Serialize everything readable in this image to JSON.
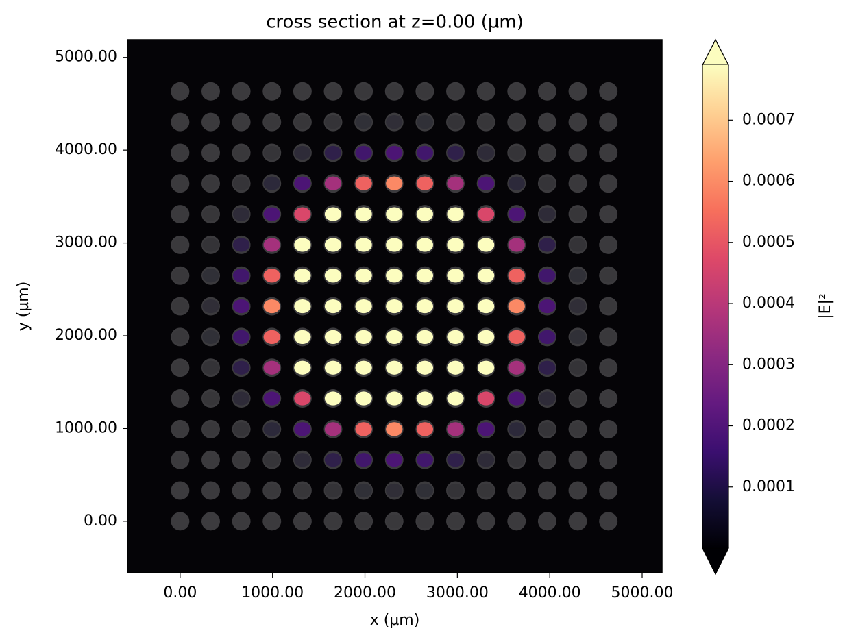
{
  "chart_data": {
    "type": "heatmap",
    "title": "cross section at z=0.00 (µm)",
    "xlabel": "x (µm)",
    "ylabel": "y (µm)",
    "colorbar_label": "|E|²",
    "colormap": "magma",
    "xlim": [
      -570,
      5215
    ],
    "ylim": [
      -555,
      5190
    ],
    "xticks": [
      {
        "value": 0,
        "label": "0.00"
      },
      {
        "value": 1000,
        "label": "1000.00"
      },
      {
        "value": 2000,
        "label": "2000.00"
      },
      {
        "value": 3000,
        "label": "3000.00"
      },
      {
        "value": 4000,
        "label": "4000.00"
      },
      {
        "value": 5000,
        "label": "5000.00"
      }
    ],
    "yticks": [
      {
        "value": 0,
        "label": "0.00"
      },
      {
        "value": 1000,
        "label": "1000.00"
      },
      {
        "value": 2000,
        "label": "2000.00"
      },
      {
        "value": 3000,
        "label": "3000.00"
      },
      {
        "value": 4000,
        "label": "4000.00"
      },
      {
        "value": 5000,
        "label": "5000.00"
      }
    ],
    "clim": [
      0,
      0.00079
    ],
    "cticks": [
      0.0001,
      0.0002,
      0.0003,
      0.0004,
      0.0005,
      0.0006,
      0.0007
    ],
    "x": [
      0,
      331,
      662,
      993,
      1324,
      1655,
      1986,
      2317,
      2648,
      2979,
      3310,
      3641,
      3972,
      4303,
      4634
    ],
    "y": [
      0,
      331,
      662,
      993,
      1324,
      1655,
      1986,
      2317,
      2648,
      2979,
      3310,
      3641,
      3972,
      4303,
      4634
    ],
    "values": [
      [
        0,
        1e-07,
        4e-07,
        1.3e-06,
        3.1e-06,
        5.8e-06,
        8.5e-06,
        9.6e-06,
        8.5e-06,
        5.8e-06,
        3.1e-06,
        1.3e-06,
        4e-07,
        1e-07,
        0
      ],
      [
        1e-07,
        5e-07,
        2.2e-06,
        6.6e-06,
        1.6e-05,
        2.96e-05,
        4.31e-05,
        4.88e-05,
        4.31e-05,
        2.96e-05,
        1.6e-05,
        6.6e-06,
        2.2e-06,
        5e-07,
        1e-07
      ],
      [
        4e-07,
        2.2e-06,
        8.5e-06,
        2.61e-05,
        6.27e-05,
        0.000117,
        0.000171,
        0.000193,
        0.000171,
        0.000117,
        6.27e-05,
        2.61e-05,
        8.5e-06,
        2.2e-06,
        4e-07
      ],
      [
        1.3e-06,
        6.6e-06,
        2.61e-05,
        8.05e-05,
        0.000193,
        0.000361,
        0.000525,
        0.000595,
        0.000525,
        0.000361,
        0.000193,
        8.05e-05,
        2.61e-05,
        6.6e-06,
        1.3e-06
      ],
      [
        3.1e-06,
        1.6e-05,
        6.27e-05,
        0.000193,
        0.000464,
        0.00087,
        0.00126,
        0.00143,
        0.00126,
        0.00087,
        0.000464,
        0.000193,
        6.27e-05,
        1.6e-05,
        3.1e-06
      ],
      [
        5.8e-06,
        2.96e-05,
        0.000117,
        0.000361,
        0.00087,
        0.00162,
        0.00236,
        0.00267,
        0.00236,
        0.00162,
        0.00087,
        0.000361,
        0.000117,
        2.96e-05,
        5.8e-06
      ],
      [
        8.5e-06,
        4.31e-05,
        0.000171,
        0.000525,
        0.00126,
        0.00236,
        0.00343,
        0.00388,
        0.00343,
        0.00236,
        0.00126,
        0.000525,
        0.000171,
        4.31e-05,
        8.5e-06
      ],
      [
        9.6e-06,
        4.88e-05,
        0.000193,
        0.000595,
        0.00143,
        0.00267,
        0.00388,
        0.0044,
        0.00388,
        0.00267,
        0.00143,
        0.000595,
        0.000193,
        4.88e-05,
        9.6e-06
      ],
      [
        8.5e-06,
        4.31e-05,
        0.000171,
        0.000525,
        0.00126,
        0.00236,
        0.00343,
        0.00388,
        0.00343,
        0.00236,
        0.00126,
        0.000525,
        0.000171,
        4.31e-05,
        8.5e-06
      ],
      [
        5.8e-06,
        2.96e-05,
        0.000117,
        0.000361,
        0.00087,
        0.00162,
        0.00236,
        0.00267,
        0.00236,
        0.00162,
        0.00087,
        0.000361,
        0.000117,
        2.96e-05,
        5.8e-06
      ],
      [
        3.1e-06,
        1.6e-05,
        6.27e-05,
        0.000193,
        0.000464,
        0.00087,
        0.00126,
        0.00143,
        0.00126,
        0.00087,
        0.000464,
        0.000193,
        6.27e-05,
        1.6e-05,
        3.1e-06
      ],
      [
        1.3e-06,
        6.6e-06,
        2.61e-05,
        8.05e-05,
        0.000193,
        0.000361,
        0.000525,
        0.000595,
        0.000525,
        0.000361,
        0.000193,
        8.05e-05,
        2.61e-05,
        6.6e-06,
        1.3e-06
      ],
      [
        4e-07,
        2.2e-06,
        8.5e-06,
        2.61e-05,
        6.27e-05,
        0.000117,
        0.000171,
        0.000193,
        0.000171,
        0.000117,
        6.27e-05,
        2.61e-05,
        8.5e-06,
        2.2e-06,
        4e-07
      ],
      [
        1e-07,
        5e-07,
        2.2e-06,
        6.6e-06,
        1.6e-05,
        2.96e-05,
        4.31e-05,
        4.88e-05,
        4.31e-05,
        2.96e-05,
        1.6e-05,
        6.6e-06,
        2.2e-06,
        5e-07,
        1e-07
      ],
      [
        0,
        1e-07,
        4e-07,
        1.3e-06,
        3.1e-06,
        5.8e-06,
        8.5e-06,
        9.6e-06,
        8.5e-06,
        5.8e-06,
        3.1e-06,
        1.3e-06,
        4e-07,
        1e-07,
        0
      ]
    ]
  }
}
